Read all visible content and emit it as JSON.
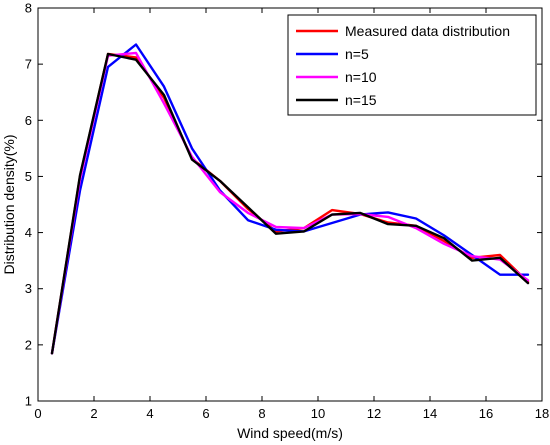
{
  "chart_data": {
    "type": "line",
    "xlabel": "Wind speed(m/s)",
    "ylabel": "Distribution density(%)",
    "xlim": [
      0,
      18
    ],
    "ylim": [
      1,
      8
    ],
    "xticks": [
      0,
      2,
      4,
      6,
      8,
      10,
      12,
      14,
      16,
      18
    ],
    "yticks": [
      1,
      2,
      3,
      4,
      5,
      6,
      7,
      8
    ],
    "x": [
      0.5,
      1.5,
      2.5,
      3.5,
      4.5,
      5.5,
      6.5,
      7.5,
      8.5,
      9.5,
      10.5,
      11.5,
      12.5,
      13.5,
      14.5,
      15.5,
      16.5,
      17.5
    ],
    "grid": false,
    "legend_position": "top-right",
    "series": [
      {
        "name": "Measured data distribution",
        "color": "#ff0000",
        "values": [
          1.85,
          5.0,
          7.18,
          7.12,
          6.4,
          5.32,
          4.92,
          4.42,
          4.02,
          4.08,
          4.4,
          4.33,
          4.18,
          4.12,
          3.85,
          3.55,
          3.6,
          3.12
        ]
      },
      {
        "name": "n=5",
        "color": "#0000ff",
        "values": [
          1.85,
          4.75,
          6.95,
          7.35,
          6.6,
          5.5,
          4.75,
          4.22,
          4.05,
          4.02,
          4.17,
          4.32,
          4.36,
          4.25,
          3.95,
          3.6,
          3.25,
          3.25
        ]
      },
      {
        "name": "n=10",
        "color": "#ff00ff",
        "values": [
          1.85,
          4.95,
          7.15,
          7.2,
          6.3,
          5.35,
          4.72,
          4.35,
          4.1,
          4.08,
          4.32,
          4.33,
          4.28,
          4.08,
          3.8,
          3.58,
          3.52,
          3.15
        ]
      },
      {
        "name": "n=15",
        "color": "#000000",
        "values": [
          1.85,
          5.02,
          7.18,
          7.08,
          6.45,
          5.3,
          4.92,
          4.45,
          3.98,
          4.02,
          4.32,
          4.35,
          4.15,
          4.12,
          3.9,
          3.5,
          3.55,
          3.1
        ]
      }
    ]
  }
}
